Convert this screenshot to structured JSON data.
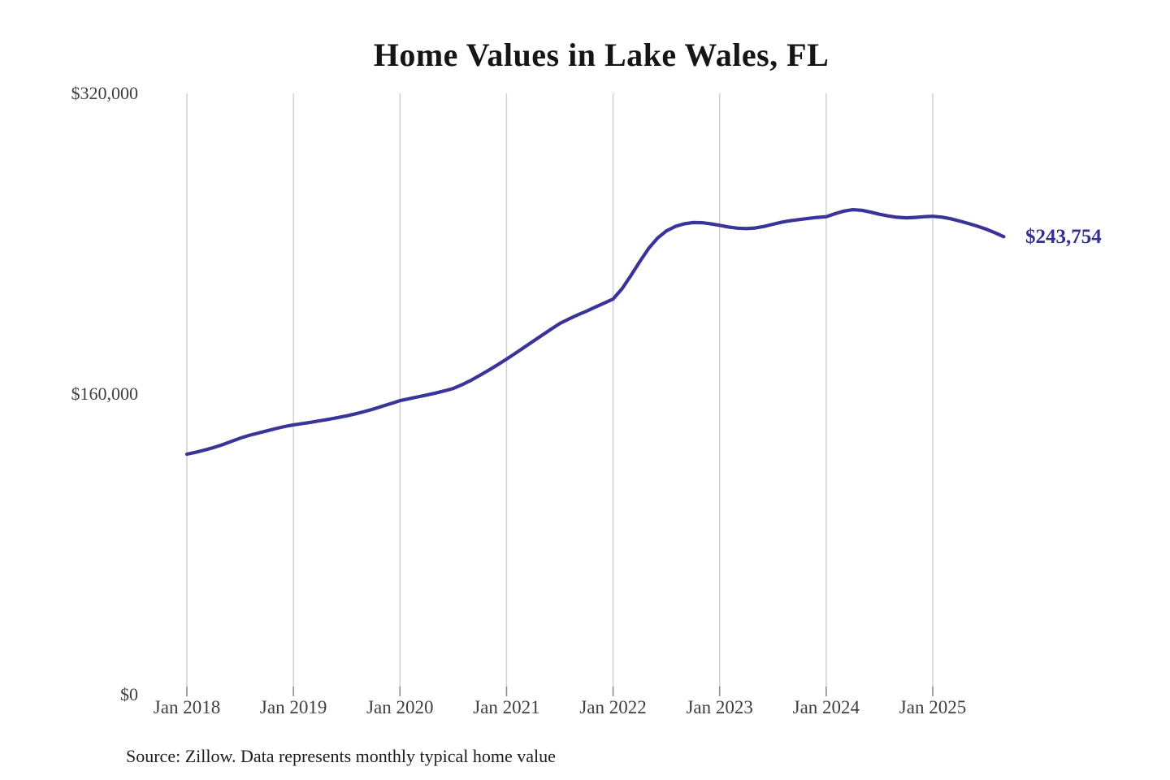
{
  "chart_data": {
    "type": "line",
    "title": "Home Values in Lake Wales, FL",
    "source_note": "Source: Zillow. Data represents monthly typical home value",
    "end_label": "$243,754",
    "current_value": 243754,
    "ylim": [
      0,
      320000
    ],
    "y_tick_labels": [
      "$320,000",
      "$160,000",
      "$0"
    ],
    "x_tick_labels": [
      "Jan 2018",
      "Jan 2019",
      "Jan 2020",
      "Jan 2021",
      "Jan 2022",
      "Jan 2023",
      "Jan 2024",
      "Jan 2025"
    ],
    "grid": "vertical-only",
    "legend": "none",
    "line_color": "#3a3398",
    "value_label_color": "#33308f",
    "gridline_color": "#cdcdcd",
    "tick_color": "#8c8c8c",
    "series": [
      {
        "name": "Monthly typical home value",
        "interval": "monthly",
        "start_month": "Jan 2018",
        "end_month": "Sep 2025",
        "values": [
          128000,
          129000,
          130200,
          131500,
          133000,
          134800,
          136500,
          138000,
          139200,
          140400,
          141600,
          142700,
          143600,
          144300,
          145000,
          145800,
          146600,
          147500,
          148400,
          149500,
          150700,
          152000,
          153500,
          155000,
          156500,
          157500,
          158500,
          159500,
          160500,
          161700,
          163000,
          165000,
          167300,
          170000,
          172700,
          175600,
          178600,
          181700,
          184900,
          188100,
          191300,
          194500,
          197600,
          199900,
          202100,
          204100,
          206300,
          208400,
          210600,
          216000,
          223000,
          230500,
          237500,
          243000,
          246800,
          249200,
          250600,
          251300,
          251200,
          250600,
          249800,
          248900,
          248300,
          248100,
          248400,
          249200,
          250400,
          251500,
          252300,
          252900,
          253500,
          254000,
          254400,
          256000,
          257400,
          258100,
          257800,
          256800,
          255700,
          254800,
          254100,
          253800,
          254000,
          254400,
          254600,
          254200,
          253300,
          252100,
          250800,
          249400,
          247800,
          245900,
          243754
        ]
      }
    ]
  }
}
